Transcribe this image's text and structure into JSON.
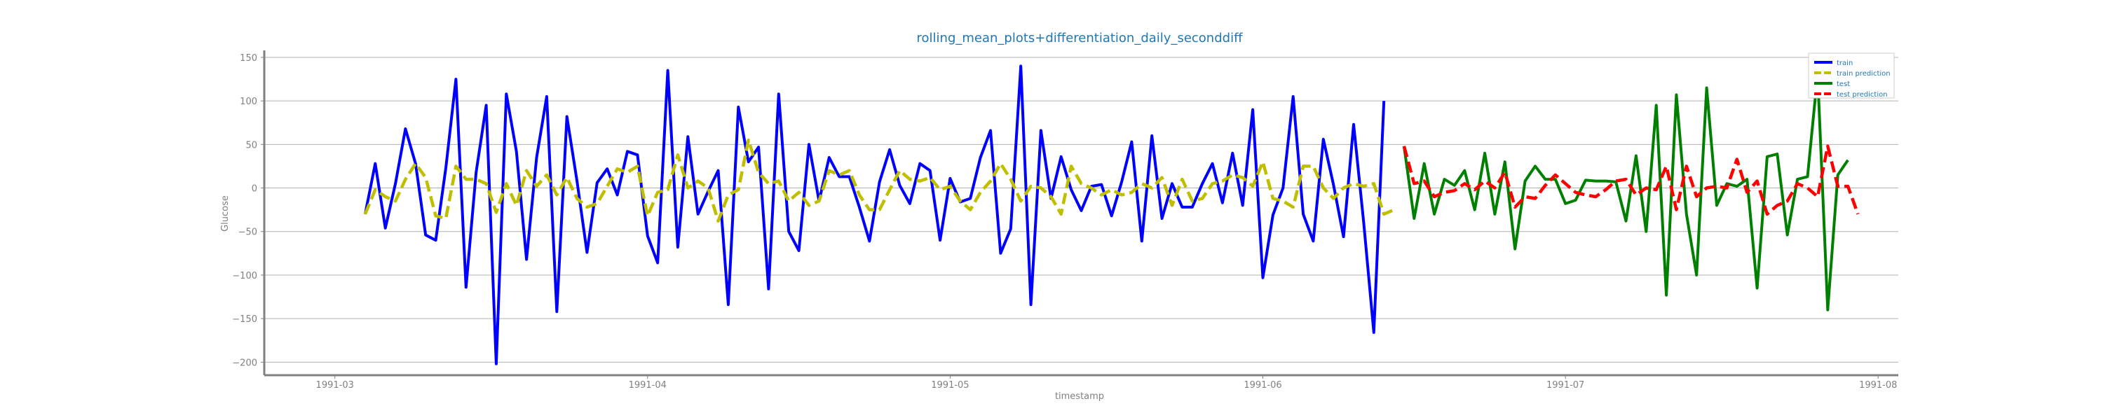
{
  "chart_data": {
    "type": "line",
    "title": "rolling_mean_plots+differentiation_daily_seconddiff",
    "xlabel": "timestamp",
    "ylabel": "Glucose",
    "xlim": [
      "1991-02-22",
      "1991-08-03"
    ],
    "ylim": [
      -215,
      158
    ],
    "x_ticks": [
      "1991-03-01",
      "1991-04-01",
      "1991-05-01",
      "1991-06-01",
      "1991-07-01",
      "1991-08-01"
    ],
    "x_tick_labels": [
      "1991-03",
      "1991-04",
      "1991-05",
      "1991-06",
      "1991-07",
      "1991-08"
    ],
    "y_ticks": [
      150,
      100,
      50,
      0,
      -50,
      -100,
      -150,
      -200
    ],
    "y_tick_labels": [
      "150",
      "100",
      "50",
      "0",
      "−50",
      "−100",
      "−150",
      "−200"
    ],
    "grid": "horizontal",
    "legend_position": "top-right",
    "colors": {
      "train": "#0000ff",
      "train_prediction": "#bfbf00",
      "test": "#008000",
      "test_prediction": "#ff0000",
      "title": "#1f77b4",
      "axis_text": "#808080"
    },
    "series": [
      {
        "name": "train",
        "key": "train",
        "style": "solid",
        "start": "1991-03-04",
        "values": [
          -30,
          28,
          -46,
          5,
          68,
          28,
          -54,
          -60,
          23,
          125,
          -114,
          18,
          95,
          -202,
          108,
          42,
          -82,
          35,
          105,
          -142,
          82,
          8,
          -74,
          6,
          22,
          -8,
          42,
          38,
          -55,
          -86,
          135,
          -68,
          59,
          -30,
          -4,
          20,
          -134,
          93,
          30,
          47,
          -116,
          108,
          -50,
          -72,
          50,
          -15,
          35,
          13,
          13,
          -22,
          -61,
          7,
          44,
          3,
          -18,
          28,
          20,
          -60,
          11,
          -16,
          -12,
          35,
          66,
          -75,
          -47,
          140,
          -134,
          66,
          -12,
          36,
          -2,
          -26,
          2,
          4,
          -32,
          7,
          53,
          -61,
          60,
          -35,
          5,
          -22,
          -22,
          5,
          28,
          -17,
          40,
          -20,
          90,
          -103,
          -31,
          0,
          105,
          -30,
          -61,
          56,
          4,
          -56,
          73,
          -40,
          -166,
          100
        ]
      },
      {
        "name": "train prediction",
        "key": "train_prediction",
        "style": "dashed",
        "start": "1991-03-04",
        "values": [
          -30,
          -2,
          -10,
          -15,
          10,
          28,
          12,
          -32,
          -35,
          25,
          10,
          10,
          5,
          -28,
          5,
          -20,
          20,
          2,
          15,
          -8,
          12,
          -12,
          -22,
          -18,
          2,
          22,
          18,
          25,
          -32,
          -5,
          -2,
          38,
          0,
          8,
          0,
          -38,
          -8,
          -2,
          55,
          18,
          5,
          8,
          -15,
          -5,
          -20,
          -15,
          20,
          15,
          20,
          -8,
          -25,
          -25,
          -2,
          20,
          10,
          8,
          12,
          -2,
          2,
          -15,
          -25,
          -5,
          8,
          28,
          10,
          -15,
          2,
          0,
          -10,
          -30,
          25,
          5,
          0,
          -8,
          -2,
          -8,
          -5,
          5,
          0,
          12,
          -20,
          10,
          -15,
          -12,
          5,
          8,
          15,
          12,
          2,
          30,
          -12,
          -15,
          -22,
          25,
          25,
          0,
          -12,
          0,
          5,
          2,
          5,
          -30,
          -25
        ]
      },
      {
        "name": "test",
        "key": "test",
        "style": "solid",
        "start": "1991-06-15",
        "values": [
          48,
          -35,
          28,
          -30,
          10,
          3,
          20,
          -25,
          40,
          -30,
          30,
          -70,
          8,
          25,
          10,
          10,
          -18,
          -14,
          9,
          8,
          8,
          7,
          -38,
          37,
          -50,
          95,
          -123,
          107,
          -30,
          -100,
          115,
          -20,
          5,
          2,
          10,
          -115,
          36,
          39,
          -54,
          10,
          13,
          131,
          -140,
          15,
          32
        ]
      },
      {
        "name": "test prediction",
        "key": "test_prediction",
        "style": "dashed",
        "start": "1991-06-15",
        "values": [
          48,
          5,
          8,
          -10,
          -5,
          -3,
          5,
          -2,
          8,
          0,
          18,
          -22,
          -10,
          -12,
          3,
          15,
          5,
          -5,
          -8,
          -10,
          -2,
          8,
          10,
          -8,
          0,
          -2,
          25,
          -25,
          25,
          -10,
          0,
          2,
          0,
          33,
          -5,
          8,
          -30,
          -20,
          -15,
          5,
          0,
          -10,
          48,
          2,
          2,
          -30
        ]
      }
    ]
  }
}
